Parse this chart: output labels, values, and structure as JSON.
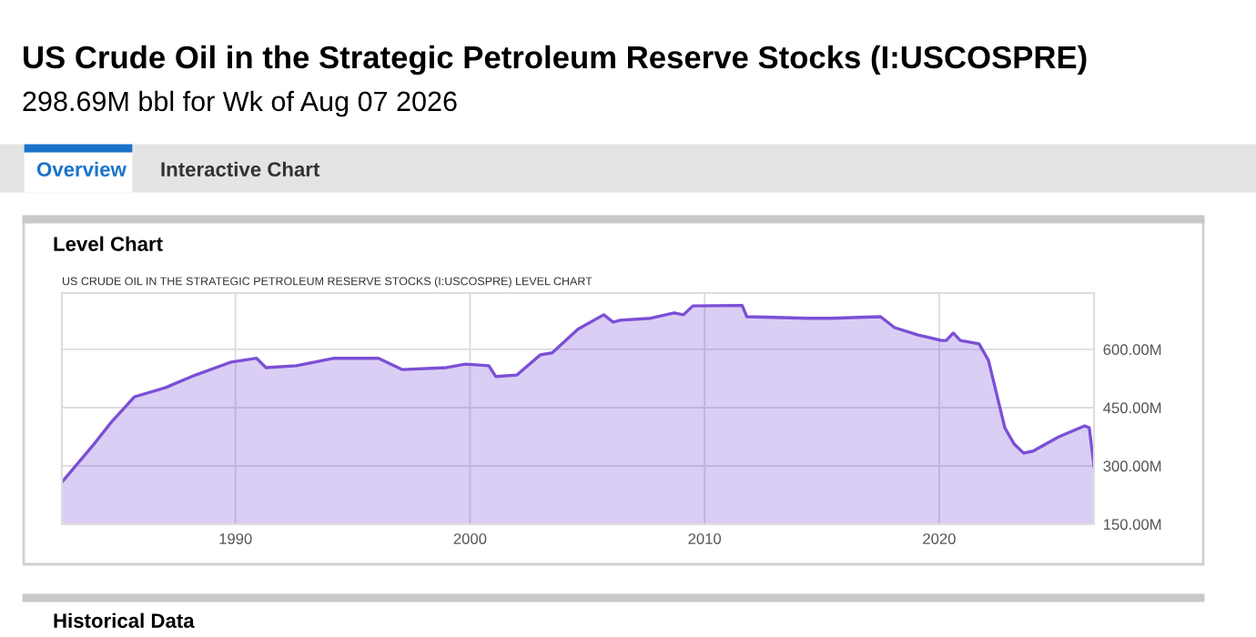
{
  "chart_data": {
    "type": "area",
    "title": "US Crude Oil in the Strategic Petroleum Reserve Stocks (I:USCOSPRE)",
    "subtitle": "298.69M bbl for Wk of Aug 07 2026",
    "annotations": [
      "Overview",
      "Interactive Chart",
      "Level Chart",
      "US CRUDE OIL IN THE STRATEGIC PETROLEUM RESERVE STOCKS (I:USCOSPRE) LEVEL CHART",
      "Historical Data"
    ],
    "x": [
      1982.6,
      1983.9,
      1984.7,
      1985.7,
      1987.0,
      1988.3,
      1989.8,
      1990.9,
      1991.3,
      1992.6,
      1994.2,
      1996.1,
      1997.1,
      1999.0,
      1999.8,
      2000.8,
      2001.1,
      2002.0,
      2003.0,
      2003.5,
      2004.6,
      2005.7,
      2006.1,
      2006.4,
      2007.7,
      2008.7,
      2009.1,
      2009.5,
      2011.6,
      2011.8,
      2014.4,
      2015.4,
      2017.5,
      2018.1,
      2019.1,
      2020.1,
      2020.3,
      2020.6,
      2020.9,
      2021.7,
      2022.1,
      2022.8,
      2023.2,
      2023.6,
      2024.0,
      2025.1,
      2026.2,
      2026.4,
      2026.6
    ],
    "series": [
      {
        "color": "#7b4fd6",
        "values": [
          258,
          351,
          412,
          478,
          501,
          534,
          567,
          577,
          553,
          558,
          577,
          577,
          548,
          553,
          562,
          558,
          530,
          534,
          586,
          591,
          652,
          689,
          670,
          675,
          680,
          694,
          689,
          712,
          713,
          684,
          680,
          680,
          684,
          656,
          637,
          623,
          623,
          642,
          623,
          614,
          572,
          398,
          356,
          333,
          338,
          375,
          403,
          398,
          299
        ]
      }
    ],
    "xlim": [
      1982.6,
      2026.6
    ],
    "xticks": [
      1990,
      2000,
      2010,
      2020
    ],
    "ylim": [
      150,
      745
    ],
    "yticks": [
      {
        "value": 150,
        "label": "150.00M"
      },
      {
        "value": 300,
        "label": "300.00M"
      },
      {
        "value": 450,
        "label": "450.00M"
      },
      {
        "value": 600,
        "label": "600.00M"
      }
    ],
    "grid": true,
    "marker": "none",
    "line_style": "solid"
  }
}
